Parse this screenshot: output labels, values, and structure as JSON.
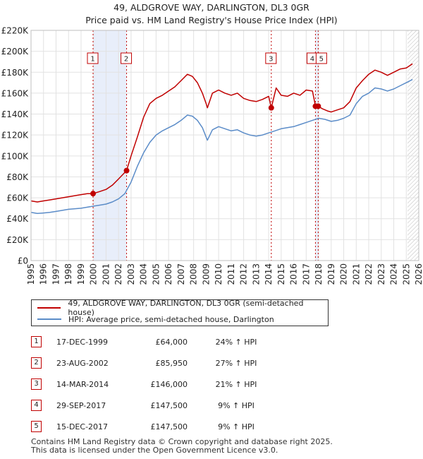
{
  "chart_data": {
    "type": "line",
    "title": "49, ALDGROVE WAY, DARLINGTON, DL3 0GR",
    "subtitle": "Price paid vs. HM Land Registry's House Price Index (HPI)",
    "xlim": [
      1995,
      2026
    ],
    "ylim": [
      0,
      220000
    ],
    "y_ticks": [
      0,
      20000,
      40000,
      60000,
      80000,
      100000,
      120000,
      140000,
      160000,
      180000,
      200000,
      220000
    ],
    "y_tick_labels": [
      "£0",
      "£20K",
      "£40K",
      "£60K",
      "£80K",
      "£100K",
      "£120K",
      "£140K",
      "£160K",
      "£180K",
      "£200K",
      "£220K"
    ],
    "x_ticks": [
      1995,
      1996,
      1997,
      1998,
      1999,
      2000,
      2001,
      2002,
      2003,
      2004,
      2005,
      2006,
      2007,
      2008,
      2009,
      2010,
      2011,
      2012,
      2013,
      2014,
      2015,
      2016,
      2017,
      2018,
      2019,
      2020,
      2021,
      2022,
      2023,
      2024,
      2025,
      2026
    ],
    "x_tick_labels": [
      "1995",
      "1996",
      "1997",
      "1998",
      "1999",
      "2000",
      "2001",
      "2002",
      "2003",
      "2004",
      "2005",
      "2006",
      "2007",
      "2008",
      "2009",
      "2010",
      "2011",
      "2012",
      "2013",
      "2014",
      "2015",
      "2016",
      "2017",
      "2018",
      "2019",
      "2020",
      "2021",
      "2022",
      "2023",
      "2024",
      "2025",
      "2026"
    ],
    "grid": true,
    "shaded_ranges": [
      [
        1999.96,
        2002.64
      ],
      [
        2017.74,
        2017.96
      ]
    ],
    "hatched_from": 2025.1,
    "series": [
      {
        "name": "49, ALDGROVE WAY, DARLINGTON, DL3 0GR (semi-detached house)",
        "color": "#c00000",
        "x": [
          1995.0,
          1995.5,
          1996.0,
          1996.5,
          1997.0,
          1997.5,
          1998.0,
          1998.5,
          1999.0,
          1999.5,
          1999.96,
          2000.5,
          2001.0,
          2001.5,
          2002.0,
          2002.64,
          2003.0,
          2003.5,
          2004.0,
          2004.5,
          2005.0,
          2005.5,
          2006.0,
          2006.5,
          2007.0,
          2007.5,
          2007.9,
          2008.3,
          2008.7,
          2009.0,
          2009.1,
          2009.5,
          2010.0,
          2010.5,
          2011.0,
          2011.5,
          2012.0,
          2012.5,
          2013.0,
          2013.5,
          2014.0,
          2014.21,
          2014.6,
          2015.0,
          2015.5,
          2016.0,
          2016.5,
          2017.0,
          2017.5,
          2017.74,
          2017.96,
          2018.3,
          2018.7,
          2019.0,
          2019.5,
          2020.0,
          2020.5,
          2021.0,
          2021.5,
          2022.0,
          2022.5,
          2023.0,
          2023.5,
          2024.0,
          2024.5,
          2025.0,
          2025.5
        ],
        "values": [
          57000,
          56000,
          57000,
          58000,
          59000,
          60000,
          61000,
          62000,
          63000,
          64000,
          64000,
          66000,
          68000,
          72000,
          78000,
          85950,
          100000,
          118000,
          137000,
          150000,
          155000,
          158000,
          162000,
          166000,
          172000,
          178000,
          176000,
          170000,
          160000,
          150000,
          146000,
          160000,
          163000,
          160000,
          158000,
          160000,
          155000,
          153000,
          152000,
          154000,
          157000,
          146000,
          165000,
          158000,
          157000,
          160000,
          158000,
          163000,
          162000,
          147500,
          147500,
          145000,
          143000,
          142000,
          144000,
          146000,
          152000,
          165000,
          172000,
          178000,
          182000,
          180000,
          177000,
          180000,
          183000,
          184000,
          188000
        ]
      },
      {
        "name": "HPI: Average price, semi-detached house, Darlington",
        "color": "#5b8cc8",
        "x": [
          1995.0,
          1995.5,
          1996.0,
          1996.5,
          1997.0,
          1997.5,
          1998.0,
          1998.5,
          1999.0,
          1999.5,
          2000.0,
          2000.5,
          2001.0,
          2001.5,
          2002.0,
          2002.5,
          2003.0,
          2003.5,
          2004.0,
          2004.5,
          2005.0,
          2005.5,
          2006.0,
          2006.5,
          2007.0,
          2007.5,
          2007.9,
          2008.3,
          2008.7,
          2009.0,
          2009.1,
          2009.5,
          2010.0,
          2010.5,
          2011.0,
          2011.5,
          2012.0,
          2012.5,
          2013.0,
          2013.5,
          2014.0,
          2014.5,
          2015.0,
          2015.5,
          2016.0,
          2016.5,
          2017.0,
          2017.5,
          2018.0,
          2018.5,
          2019.0,
          2019.5,
          2020.0,
          2020.5,
          2021.0,
          2021.5,
          2022.0,
          2022.5,
          2023.0,
          2023.5,
          2024.0,
          2024.5,
          2025.0,
          2025.5
        ],
        "values": [
          46000,
          45000,
          45500,
          46000,
          47000,
          48000,
          49000,
          49500,
          50000,
          51000,
          52000,
          53000,
          54000,
          56000,
          59000,
          64000,
          75000,
          90000,
          103000,
          113000,
          120000,
          124000,
          127000,
          130000,
          134000,
          139000,
          138000,
          134000,
          127000,
          118000,
          115000,
          125000,
          128000,
          126000,
          124000,
          125000,
          122000,
          120000,
          119000,
          120000,
          122000,
          124000,
          126000,
          127000,
          128000,
          130000,
          132000,
          134000,
          136000,
          135000,
          133000,
          134000,
          136000,
          139000,
          150000,
          157000,
          160000,
          165000,
          164000,
          162000,
          164000,
          167000,
          170000,
          173000
        ]
      }
    ],
    "sale_points": [
      {
        "x": 1999.96,
        "y": 64000
      },
      {
        "x": 2002.64,
        "y": 85950
      },
      {
        "x": 2014.21,
        "y": 146000
      },
      {
        "x": 2017.74,
        "y": 147500
      },
      {
        "x": 2017.96,
        "y": 147500
      }
    ],
    "markers": [
      {
        "label": "1",
        "x": 1999.96
      },
      {
        "label": "2",
        "x": 2002.64
      },
      {
        "label": "3",
        "x": 2014.21
      },
      {
        "label": "4",
        "x": 2017.74
      },
      {
        "label": "5",
        "x": 2017.96
      }
    ]
  },
  "legend": {
    "items": [
      {
        "label": "49, ALDGROVE WAY, DARLINGTON, DL3 0GR (semi-detached house)",
        "color": "#c00000"
      },
      {
        "label": "HPI: Average price, semi-detached house, Darlington",
        "color": "#5b8cc8"
      }
    ]
  },
  "sales": [
    {
      "num": "1",
      "date": "17-DEC-1999",
      "price": "£64,000",
      "hpi": "24% ↑ HPI"
    },
    {
      "num": "2",
      "date": "23-AUG-2002",
      "price": "£85,950",
      "hpi": "27% ↑ HPI"
    },
    {
      "num": "3",
      "date": "14-MAR-2014",
      "price": "£146,000",
      "hpi": "21% ↑ HPI"
    },
    {
      "num": "4",
      "date": "29-SEP-2017",
      "price": "£147,500",
      "hpi": "9% ↑ HPI"
    },
    {
      "num": "5",
      "date": "15-DEC-2017",
      "price": "£147,500",
      "hpi": "9% ↑ HPI"
    }
  ],
  "footer": {
    "line1": "Contains HM Land Registry data © Crown copyright and database right 2025.",
    "line2": "This data is licensed under the Open Government Licence v3.0."
  }
}
